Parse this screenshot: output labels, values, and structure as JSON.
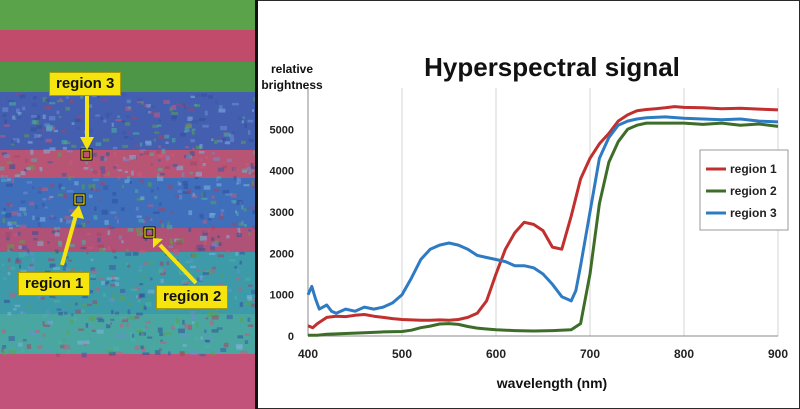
{
  "photo": {
    "description_labels": [
      "region 3",
      "region 1",
      "region 2"
    ],
    "field_colors": {
      "soil": "#c04b6a",
      "grass": "#4f9a3e",
      "veg_blue": "#3f5fb5",
      "veg_teal": "#3fa8a0",
      "label_fill": "#f5e40e"
    }
  },
  "chart_data": {
    "type": "line",
    "title": "Hyperspectral signal",
    "ylabel": "relative brightness",
    "xlabel": "wavelength (nm)",
    "xlim": [
      400,
      900
    ],
    "ylim": [
      0,
      6000
    ],
    "xticks": [
      400,
      500,
      600,
      700,
      800,
      900
    ],
    "yticks": [
      0,
      1000,
      2000,
      3000,
      4000,
      5000
    ],
    "grid": "vertical",
    "legend_position": "right",
    "series": [
      {
        "name": "region 1",
        "color": "#c0302e",
        "x": [
          400,
          405,
          410,
          420,
          430,
          440,
          450,
          460,
          470,
          480,
          490,
          500,
          510,
          520,
          530,
          540,
          550,
          560,
          570,
          580,
          590,
          600,
          610,
          620,
          630,
          640,
          650,
          660,
          670,
          680,
          690,
          700,
          710,
          720,
          730,
          740,
          750,
          760,
          770,
          780,
          790,
          800,
          820,
          840,
          860,
          880,
          900
        ],
        "y": [
          250,
          200,
          300,
          450,
          480,
          470,
          500,
          520,
          480,
          450,
          420,
          400,
          390,
          380,
          380,
          390,
          380,
          400,
          450,
          550,
          850,
          1500,
          2100,
          2500,
          2750,
          2700,
          2550,
          2150,
          2100,
          2900,
          3800,
          4300,
          4650,
          4900,
          5200,
          5350,
          5450,
          5480,
          5500,
          5520,
          5550,
          5530,
          5520,
          5500,
          5510,
          5490,
          5470
        ]
      },
      {
        "name": "region 2",
        "color": "#3e6d2a",
        "x": [
          400,
          410,
          420,
          440,
          460,
          480,
          500,
          510,
          520,
          530,
          540,
          550,
          560,
          570,
          580,
          590,
          600,
          620,
          640,
          660,
          680,
          690,
          700,
          710,
          720,
          730,
          740,
          750,
          760,
          780,
          800,
          820,
          840,
          860,
          880,
          900
        ],
        "y": [
          20,
          20,
          40,
          60,
          80,
          100,
          110,
          140,
          200,
          240,
          290,
          300,
          280,
          230,
          190,
          170,
          150,
          130,
          120,
          130,
          150,
          300,
          1500,
          3200,
          4200,
          4700,
          5000,
          5100,
          5150,
          5150,
          5150,
          5120,
          5150,
          5100,
          5130,
          5070
        ]
      },
      {
        "name": "region 3",
        "color": "#2e7bc4",
        "x": [
          400,
          404,
          408,
          412,
          416,
          420,
          425,
          430,
          440,
          450,
          460,
          470,
          480,
          490,
          500,
          510,
          520,
          530,
          540,
          550,
          560,
          570,
          580,
          590,
          600,
          610,
          620,
          630,
          640,
          650,
          660,
          670,
          675,
          680,
          685,
          690,
          700,
          710,
          720,
          730,
          740,
          750,
          760,
          780,
          800,
          820,
          840,
          860,
          880,
          900
        ],
        "y": [
          1000,
          1200,
          900,
          650,
          700,
          750,
          600,
          550,
          650,
          600,
          700,
          650,
          700,
          800,
          1000,
          1400,
          1850,
          2100,
          2200,
          2250,
          2200,
          2100,
          1950,
          1900,
          1850,
          1800,
          1700,
          1700,
          1650,
          1500,
          1250,
          950,
          900,
          850,
          1100,
          1700,
          3000,
          4300,
          4800,
          5100,
          5200,
          5250,
          5280,
          5300,
          5270,
          5250,
          5230,
          5250,
          5200,
          5180
        ]
      }
    ]
  }
}
